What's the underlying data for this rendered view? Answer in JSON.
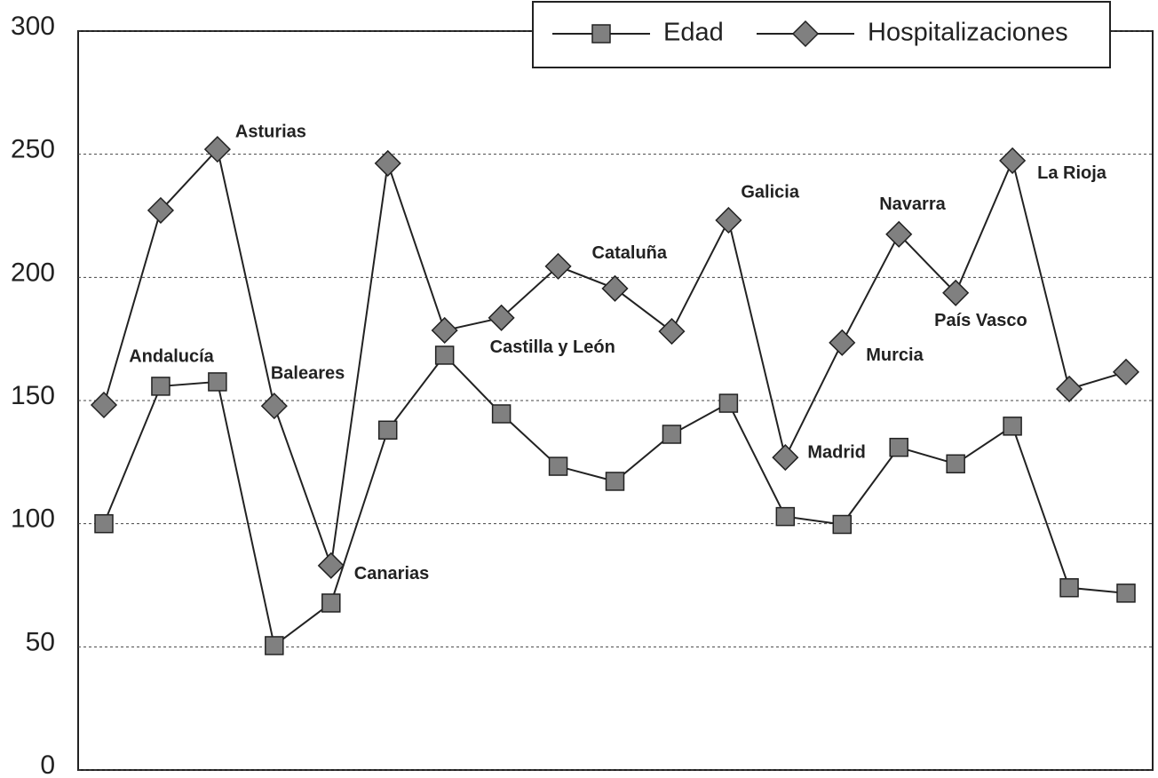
{
  "chart_data": {
    "type": "line",
    "categories": [
      null,
      null,
      null,
      null,
      null,
      null,
      null,
      null,
      null,
      null,
      null,
      null,
      null,
      null,
      null,
      null,
      null,
      null,
      null
    ],
    "point_labels": [
      "Andalucía",
      null,
      "Asturias",
      "Baleares",
      "Canarias",
      null,
      "Castilla y León",
      null,
      "Cataluña",
      null,
      null,
      "Galicia",
      "Madrid",
      "Murcia",
      "Navarra",
      "País Vasco",
      "La Rioja",
      null,
      null
    ],
    "series": [
      {
        "name": "Edad",
        "color": "#808080",
        "marker": "square",
        "values": [
          100,
          155.8,
          157.6,
          50.5,
          67.8,
          138,
          168.4,
          144.6,
          123.3,
          117.2,
          136.3,
          148.9,
          102.9,
          99.7,
          131,
          124.3,
          139.6,
          74,
          71.8
        ]
      },
      {
        "name": "Hospitalizaciones",
        "color": "#808080",
        "marker": "diamond",
        "values": [
          148.2,
          227.2,
          252,
          147.8,
          83,
          246.3,
          178.5,
          183.6,
          204.5,
          195.5,
          178.1,
          223.2,
          126.9,
          173.5,
          217.5,
          193.7,
          247.4,
          154.7,
          161.6
        ]
      }
    ],
    "ylim": [
      0,
      300
    ],
    "yticks": [
      0,
      50,
      100,
      150,
      200,
      250,
      300
    ],
    "grid": true,
    "legend": "top-right"
  }
}
